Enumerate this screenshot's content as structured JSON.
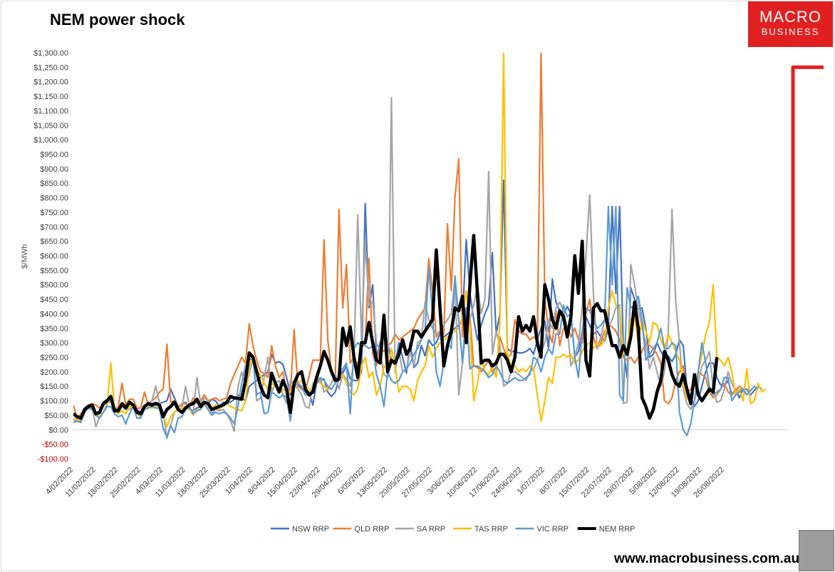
{
  "title": "NEM power shock",
  "brand": {
    "line1": "MACRO",
    "line2": "BUSINESS",
    "color": "#e02020"
  },
  "website": "www.macrobusiness.com.au",
  "chart_data": {
    "type": "line",
    "title": "NEM power shock",
    "ylabel": "$/MWh",
    "xlabel": "",
    "ylim": [
      -100,
      1300
    ],
    "ytick_step": 50,
    "yticks_negative_color": "#c00000",
    "grid": false,
    "legend_position": "bottom",
    "x_tick_labels": [
      "4/02/2022",
      "11/02/2022",
      "18/02/2022",
      "25/02/2022",
      "4/03/2022",
      "11/03/2022",
      "18/03/2022",
      "25/03/2022",
      "1/04/2022",
      "8/04/2022",
      "15/04/2022",
      "22/04/2022",
      "29/04/2022",
      "6/05/2022",
      "13/05/2022",
      "20/05/2022",
      "27/05/2022",
      "3/06/2022",
      "10/06/2022",
      "17/06/2022",
      "24/06/2022",
      "1/07/2022",
      "8/07/2022",
      "15/07/2022",
      "22/07/2022",
      "29/07/2022",
      "5/08/2022",
      "12/08/2022",
      "19/08/2022",
      "26/08/2022"
    ],
    "series": [
      {
        "name": "NSW RRP",
        "color": "#4472c4",
        "width": 2.2,
        "values": [
          55,
          45,
          40,
          75,
          85,
          80,
          60,
          55,
          95,
          105,
          115,
          75,
          70,
          90,
          75,
          95,
          85,
          70,
          60,
          80,
          95,
          90,
          95,
          90,
          95,
          100,
          140,
          110,
          80,
          85,
          95,
          70,
          65,
          75,
          80,
          95,
          90,
          105,
          100,
          80,
          95,
          90,
          95,
          105,
          120,
          110,
          100,
          150,
          160,
          170,
          180,
          190,
          200,
          260,
          230,
          235,
          225,
          180,
          120,
          170,
          160,
          140,
          130,
          130,
          85,
          160,
          170,
          175,
          130,
          115,
          130,
          175,
          195,
          220,
          175,
          170,
          170,
          200,
          780,
          420,
          500,
          250,
          300,
          335,
          300,
          240,
          220,
          300,
          250,
          195,
          300,
          215,
          230,
          290,
          255,
          310,
          290,
          300,
          330,
          320,
          330,
          340,
          350,
          360,
          380,
          655,
          470,
          380,
          310,
          360,
          400,
          430,
          610,
          330,
          400,
          860,
          280,
          270,
          270,
          265,
          265,
          270,
          280,
          260,
          310,
          350,
          375,
          280,
          520,
          440,
          410,
          395,
          425,
          400,
          250,
          270,
          340,
          390,
          360,
          330,
          340,
          320,
          305,
          350,
          770,
          470,
          770,
          280,
          180,
          490,
          450,
          415,
          420,
          350,
          250,
          260,
          300,
          270,
          250,
          255,
          235,
          260,
          310,
          290,
          140,
          110,
          80,
          100,
          150,
          200,
          230,
          230,
          180,
          155,
          150,
          170,
          120,
          140,
          110,
          140,
          140,
          120,
          135,
          150,
          140
        ]
      },
      {
        "name": "QLD RRP",
        "color": "#ed7d31",
        "width": 2.2,
        "values": [
          85,
          40,
          55,
          70,
          85,
          90,
          85,
          75,
          85,
          95,
          100,
          65,
          80,
          160,
          85,
          105,
          105,
          75,
          75,
          130,
          85,
          100,
          110,
          130,
          140,
          295,
          95,
          100,
          75,
          90,
          90,
          80,
          110,
          90,
          100,
          120,
          100,
          105,
          110,
          100,
          105,
          110,
          160,
          190,
          220,
          250,
          230,
          365,
          290,
          240,
          200,
          195,
          180,
          290,
          220,
          180,
          200,
          130,
          130,
          345,
          150,
          140,
          135,
          185,
          240,
          240,
          240,
          655,
          310,
          200,
          180,
          760,
          420,
          570,
          230,
          250,
          220,
          280,
          300,
          590,
          260,
          220,
          280,
          270,
          290,
          300,
          330,
          310,
          320,
          330,
          340,
          350,
          380,
          400,
          420,
          590,
          480,
          320,
          340,
          330,
          710,
          480,
          800,
          935,
          320,
          420,
          390,
          220,
          215,
          200,
          220,
          240,
          200,
          190,
          320,
          280,
          250,
          260,
          380,
          340,
          330,
          330,
          310,
          320,
          310,
          1300,
          450,
          340,
          300,
          410,
          290,
          350,
          360,
          320,
          350,
          310,
          300,
          400,
          450,
          320,
          280,
          300,
          340,
          360,
          355,
          340,
          310,
          250,
          240,
          250,
          230,
          250,
          270,
          300,
          290,
          280,
          260,
          230,
          100,
          90,
          110,
          170,
          200,
          220,
          130,
          140,
          160,
          200,
          190,
          180,
          130,
          110,
          120,
          140,
          160,
          130,
          120,
          135,
          150,
          140
        ]
      },
      {
        "name": "SA RRP",
        "color": "#a5a5a5",
        "width": 2.2,
        "values": [
          35,
          30,
          35,
          60,
          75,
          80,
          10,
          45,
          60,
          90,
          100,
          70,
          60,
          80,
          70,
          70,
          80,
          60,
          40,
          80,
          90,
          100,
          150,
          95,
          60,
          -30,
          15,
          60,
          70,
          75,
          150,
          80,
          55,
          180,
          90,
          110,
          100,
          55,
          70,
          65,
          70,
          55,
          30,
          -5,
          150,
          200,
          150,
          190,
          250,
          100,
          110,
          180,
          250,
          130,
          160,
          170,
          120,
          90,
          170,
          160,
          140,
          120,
          80,
          75,
          160,
          170,
          180,
          130,
          140,
          160,
          195,
          140,
          190,
          175,
          150,
          240,
          740,
          310,
          650,
          430,
          440,
          300,
          270,
          190,
          180,
          1145,
          200,
          270,
          200,
          210,
          270,
          220,
          300,
          310,
          440,
          380,
          350,
          330,
          340,
          360,
          380,
          400,
          520,
          120,
          230,
          350,
          380,
          430,
          500,
          400,
          450,
          890,
          260,
          340,
          290,
          150,
          160,
          200,
          200,
          190,
          180,
          170,
          200,
          210,
          240,
          270,
          300,
          380,
          350,
          420,
          440,
          410,
          350,
          220,
          250,
          300,
          420,
          600,
          810,
          470,
          280,
          320,
          380,
          350,
          380,
          420,
          430,
          90,
          95,
          570,
          500,
          420,
          350,
          300,
          210,
          250,
          200,
          150,
          200,
          340,
          760,
          440,
          300,
          140,
          90,
          70,
          100,
          160,
          220,
          240,
          270,
          140,
          95,
          100,
          140,
          200,
          160,
          130,
          140,
          140,
          120,
          135,
          150,
          140
        ]
      },
      {
        "name": "TAS RRP",
        "color": "#ffc000",
        "width": 2.2,
        "values": [
          40,
          35,
          30,
          65,
          80,
          75,
          55,
          45,
          60,
          80,
          230,
          70,
          55,
          65,
          55,
          80,
          80,
          60,
          40,
          80,
          80,
          75,
          80,
          70,
          50,
          10,
          45,
          60,
          70,
          75,
          80,
          75,
          50,
          70,
          70,
          85,
          75,
          75,
          85,
          70,
          85,
          90,
          80,
          75,
          70,
          65,
          100,
          220,
          250,
          200,
          190,
          160,
          140,
          160,
          150,
          130,
          140,
          130,
          130,
          150,
          160,
          170,
          150,
          140,
          130,
          190,
          160,
          150,
          140,
          140,
          160,
          180,
          190,
          160,
          130,
          120,
          140,
          220,
          250,
          180,
          200,
          120,
          150,
          220,
          210,
          280,
          220,
          130,
          150,
          150,
          140,
          100,
          170,
          200,
          220,
          290,
          250,
          280,
          300,
          310,
          320,
          330,
          340,
          350,
          390,
          480,
          350,
          100,
          160,
          250,
          200,
          190,
          220,
          180,
          370,
          1300,
          260,
          220,
          220,
          200,
          210,
          200,
          220,
          210,
          120,
          30,
          100,
          180,
          160,
          250,
          250,
          260,
          250,
          260,
          230,
          240,
          270,
          290,
          300,
          280,
          300,
          290,
          310,
          420,
          480,
          430,
          420,
          260,
          280,
          380,
          390,
          300,
          380,
          340,
          300,
          370,
          360,
          310,
          280,
          330,
          300,
          270,
          240,
          160,
          110,
          100,
          160,
          200,
          260,
          330,
          370,
          500,
          250,
          240,
          220,
          250,
          200,
          120,
          140,
          100,
          210,
          90,
          100,
          160,
          130,
          140
        ]
      },
      {
        "name": "VIC RRP",
        "color": "#5b9bd5",
        "width": 2.2,
        "values": [
          25,
          30,
          25,
          60,
          75,
          70,
          50,
          40,
          60,
          80,
          80,
          55,
          45,
          50,
          20,
          55,
          80,
          40,
          40,
          70,
          75,
          80,
          75,
          75,
          5,
          -25,
          15,
          -10,
          40,
          45,
          70,
          80,
          55,
          65,
          70,
          90,
          70,
          50,
          60,
          55,
          60,
          55,
          40,
          20,
          80,
          160,
          220,
          240,
          250,
          120,
          130,
          55,
          60,
          130,
          120,
          110,
          120,
          110,
          30,
          150,
          160,
          150,
          120,
          120,
          140,
          160,
          180,
          170,
          150,
          140,
          160,
          175,
          210,
          230,
          55,
          280,
          300,
          290,
          290,
          280,
          290,
          190,
          150,
          80,
          200,
          170,
          160,
          170,
          200,
          210,
          230,
          260,
          280,
          310,
          340,
          560,
          400,
          200,
          150,
          230,
          300,
          280,
          530,
          380,
          230,
          420,
          210,
          220,
          220,
          210,
          200,
          180,
          190,
          220,
          200,
          170,
          160,
          170,
          180,
          170,
          170,
          180,
          190,
          250,
          240,
          200,
          250,
          280,
          260,
          330,
          330,
          430,
          390,
          400,
          250,
          180,
          340,
          420,
          410,
          380,
          350,
          360,
          380,
          770,
          500,
          770,
          120,
          100,
          490,
          420,
          430,
          460,
          380,
          240,
          260,
          280,
          300,
          350,
          280,
          280,
          300,
          290,
          60,
          0,
          -20,
          20,
          100,
          200,
          300,
          230,
          150,
          120,
          130,
          140,
          180,
          180,
          100,
          120,
          130,
          140,
          120,
          135,
          150,
          140
        ]
      },
      {
        "name": "NEM  RRP",
        "color": "#000000",
        "width": 4.5,
        "values": [
          55,
          45,
          40,
          70,
          80,
          85,
          55,
          60,
          90,
          100,
          115,
          65,
          65,
          90,
          75,
          95,
          85,
          60,
          55,
          80,
          90,
          85,
          90,
          85,
          45,
          70,
          80,
          95,
          70,
          60,
          75,
          85,
          90,
          105,
          80,
          95,
          90,
          70,
          75,
          80,
          85,
          95,
          115,
          110,
          108,
          105,
          170,
          265,
          250,
          200,
          150,
          120,
          110,
          195,
          160,
          130,
          170,
          140,
          60,
          160,
          190,
          200,
          140,
          120,
          130,
          180,
          220,
          270,
          240,
          200,
          170,
          175,
          350,
          290,
          355,
          250,
          180,
          300,
          300,
          370,
          300,
          240,
          230,
          395,
          200,
          240,
          230,
          260,
          310,
          260,
          280,
          340,
          340,
          320,
          340,
          360,
          380,
          620,
          420,
          220,
          290,
          340,
          420,
          410,
          460,
          300,
          500,
          670,
          470,
          230,
          240,
          240,
          220,
          230,
          260,
          260,
          240,
          200,
          250,
          390,
          340,
          360,
          340,
          390,
          300,
          250,
          500,
          450,
          380,
          350,
          410,
          390,
          320,
          390,
          600,
          470,
          650,
          240,
          185,
          420,
          435,
          410,
          410,
          350,
          290,
          290,
          250,
          290,
          260,
          320,
          440,
          350,
          110,
          80,
          40,
          70,
          130,
          170,
          270,
          240,
          190,
          160,
          150,
          190,
          140,
          90,
          190,
          120,
          100,
          120,
          140,
          130,
          250
        ]
      }
    ],
    "projection": {
      "name": "projection",
      "color": "#e62020",
      "from_value": 250,
      "to_value": 1250,
      "width": 5
    }
  }
}
